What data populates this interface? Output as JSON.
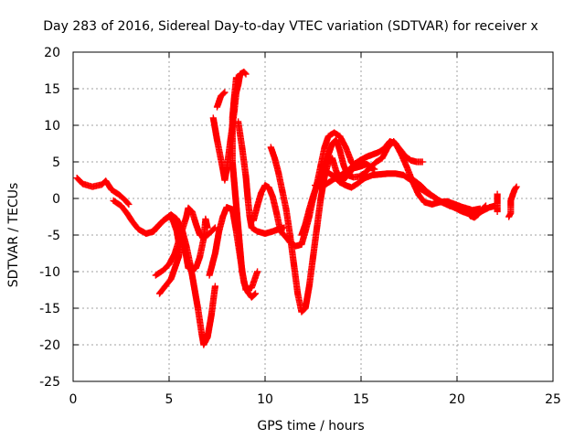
{
  "chart_data": {
    "type": "scatter",
    "title": "Day 283 of 2016, Sidereal Day-to-day VTEC variation (SDTVAR) for receiver x",
    "xlabel": "GPS time / hours",
    "ylabel": "SDTVAR / TECUs",
    "xlim": [
      0,
      25
    ],
    "ylim": [
      -25,
      20
    ],
    "xticks": [
      "0",
      "5",
      "10",
      "15",
      "20",
      "25"
    ],
    "yticks": [
      "-25",
      "-20",
      "-15",
      "-10",
      "-5",
      "0",
      "5",
      "10",
      "15",
      "20"
    ],
    "grid": true,
    "legend": "none",
    "marker": "plus",
    "color": "#ff0000",
    "tracks": [
      [
        [
          0.2,
          2.8
        ],
        [
          0.5,
          2.0
        ],
        [
          1.0,
          1.6
        ],
        [
          1.5,
          1.9
        ],
        [
          1.7,
          2.4
        ],
        [
          2.0,
          1.2
        ],
        [
          2.4,
          0.5
        ],
        [
          2.7,
          -0.2
        ],
        [
          2.9,
          -0.8
        ]
      ],
      [
        [
          2.1,
          -0.3
        ],
        [
          2.5,
          -1.0
        ],
        [
          2.8,
          -2.0
        ],
        [
          3.1,
          -3.2
        ],
        [
          3.4,
          -4.2
        ],
        [
          3.8,
          -4.8
        ],
        [
          4.2,
          -4.5
        ],
        [
          4.5,
          -3.6
        ],
        [
          4.8,
          -2.8
        ],
        [
          5.1,
          -2.2
        ],
        [
          5.4,
          -2.8
        ],
        [
          5.7,
          -4.5
        ],
        [
          5.9,
          -6.5
        ],
        [
          6.1,
          -9.0
        ],
        [
          6.3,
          -12.0
        ],
        [
          6.5,
          -15.0
        ],
        [
          6.7,
          -18.5
        ],
        [
          6.8,
          -20.0
        ],
        [
          7.0,
          -19.0
        ],
        [
          7.2,
          -16.0
        ],
        [
          7.4,
          -12.0
        ]
      ],
      [
        [
          4.3,
          -10.5
        ],
        [
          4.7,
          -9.8
        ],
        [
          5.0,
          -9.0
        ],
        [
          5.3,
          -7.5
        ],
        [
          5.5,
          -5.8
        ],
        [
          5.7,
          -4.2
        ],
        [
          5.9,
          -2.5
        ],
        [
          6.0,
          -1.3
        ],
        [
          6.2,
          -1.8
        ],
        [
          6.4,
          -3.5
        ],
        [
          6.6,
          -5.0
        ],
        [
          6.8,
          -5.2
        ],
        [
          7.0,
          -5.0
        ],
        [
          7.2,
          -4.5
        ],
        [
          7.4,
          -4.0
        ]
      ],
      [
        [
          4.5,
          -13.0
        ],
        [
          4.8,
          -12.0
        ],
        [
          5.1,
          -11.0
        ],
        [
          5.3,
          -9.5
        ],
        [
          5.5,
          -8.0
        ],
        [
          5.6,
          -6.0
        ],
        [
          5.7,
          -5.0
        ],
        [
          5.8,
          -6.5
        ],
        [
          5.9,
          -8.0
        ],
        [
          6.0,
          -9.5
        ],
        [
          6.2,
          -9.8
        ],
        [
          6.4,
          -9.5
        ],
        [
          6.6,
          -8.0
        ],
        [
          6.8,
          -5.5
        ],
        [
          6.9,
          -2.8
        ],
        [
          7.0,
          -4.0
        ]
      ],
      [
        [
          4.1,
          -4.6
        ],
        [
          4.4,
          -3.8
        ],
        [
          4.7,
          -3.0
        ],
        [
          5.0,
          -2.5
        ],
        [
          5.2,
          -3.0
        ],
        [
          5.4,
          -4.5
        ],
        [
          5.5,
          -6.0
        ]
      ],
      [
        [
          7.1,
          -10.5
        ],
        [
          7.4,
          -7.5
        ],
        [
          7.6,
          -4.5
        ],
        [
          7.8,
          -2.5
        ],
        [
          8.0,
          -1.2
        ],
        [
          8.3,
          -1.5
        ],
        [
          8.5,
          -4.5
        ],
        [
          8.7,
          -8.0
        ],
        [
          8.9,
          -11.5
        ],
        [
          9.1,
          -12.8
        ],
        [
          9.3,
          -13.5
        ],
        [
          9.5,
          -13.0
        ]
      ],
      [
        [
          7.5,
          12.5
        ],
        [
          7.7,
          14.0
        ],
        [
          7.9,
          14.5
        ]
      ],
      [
        [
          7.3,
          11.0
        ],
        [
          7.5,
          8.0
        ],
        [
          7.8,
          4.0
        ],
        [
          7.9,
          2.5
        ],
        [
          8.0,
          4.0
        ],
        [
          8.2,
          8.0
        ],
        [
          8.4,
          12.0
        ],
        [
          8.5,
          14.5
        ],
        [
          8.6,
          15.5
        ],
        [
          8.7,
          17.0
        ],
        [
          8.9,
          17.3
        ],
        [
          9.0,
          17.0
        ]
      ],
      [
        [
          8.5,
          16.5
        ],
        [
          8.4,
          14.0
        ],
        [
          8.3,
          11.0
        ],
        [
          8.3,
          8.0
        ],
        [
          8.3,
          5.0
        ],
        [
          8.4,
          2.0
        ],
        [
          8.5,
          -1.0
        ],
        [
          8.6,
          -4.0
        ],
        [
          8.7,
          -7.0
        ],
        [
          8.8,
          -10.0
        ],
        [
          9.0,
          -12.5
        ],
        [
          9.3,
          -12.2
        ],
        [
          9.6,
          -10.0
        ]
      ],
      [
        [
          8.6,
          10.5
        ],
        [
          8.8,
          7.0
        ],
        [
          9.0,
          3.0
        ],
        [
          9.1,
          0.0
        ],
        [
          9.2,
          -2.5
        ],
        [
          9.3,
          -4.0
        ],
        [
          9.6,
          -4.5
        ],
        [
          10.0,
          -4.8
        ],
        [
          10.4,
          -4.5
        ],
        [
          10.7,
          -4.2
        ],
        [
          11.0,
          -4.0
        ]
      ],
      [
        [
          9.4,
          -3.0
        ],
        [
          9.6,
          -1.0
        ],
        [
          9.8,
          0.8
        ],
        [
          10.0,
          1.8
        ],
        [
          10.2,
          1.5
        ],
        [
          10.4,
          0.2
        ],
        [
          10.6,
          -2.0
        ],
        [
          10.8,
          -4.5
        ],
        [
          11.0,
          -5.0
        ]
      ],
      [
        [
          10.3,
          7.0
        ],
        [
          10.5,
          5.5
        ],
        [
          10.7,
          3.5
        ],
        [
          10.9,
          1.0
        ],
        [
          11.1,
          -1.5
        ],
        [
          11.3,
          -5.0
        ],
        [
          11.5,
          -9.0
        ],
        [
          11.7,
          -13.0
        ],
        [
          11.9,
          -15.5
        ],
        [
          12.1,
          -15.0
        ],
        [
          12.3,
          -12.0
        ],
        [
          12.5,
          -8.0
        ],
        [
          12.7,
          -4.0
        ],
        [
          12.9,
          0.0
        ],
        [
          13.1,
          3.0
        ],
        [
          13.3,
          5.0
        ],
        [
          13.5,
          5.5
        ],
        [
          13.7,
          3.8
        ],
        [
          13.9,
          2.5
        ],
        [
          14.2,
          2.8
        ],
        [
          14.5,
          3.8
        ],
        [
          14.8,
          4.8
        ],
        [
          15.1,
          5.0
        ],
        [
          15.4,
          4.3
        ],
        [
          15.7,
          4.0
        ]
      ],
      [
        [
          11.0,
          -5.0
        ],
        [
          11.3,
          -6.0
        ],
        [
          11.6,
          -6.5
        ],
        [
          11.9,
          -6.3
        ],
        [
          12.1,
          -4.5
        ],
        [
          12.3,
          -2.5
        ],
        [
          12.5,
          0.0
        ],
        [
          12.7,
          2.0
        ],
        [
          12.9,
          4.5
        ],
        [
          13.1,
          7.0
        ],
        [
          13.3,
          8.5
        ],
        [
          13.6,
          9.0
        ],
        [
          13.9,
          8.5
        ],
        [
          14.2,
          7.0
        ],
        [
          14.5,
          5.0
        ],
        [
          14.7,
          4.2
        ],
        [
          15.0,
          4.4
        ],
        [
          15.3,
          4.7
        ],
        [
          15.6,
          4.2
        ]
      ],
      [
        [
          11.9,
          -5.0
        ],
        [
          12.1,
          -3.5
        ],
        [
          12.3,
          -1.5
        ],
        [
          12.5,
          0.3
        ],
        [
          12.7,
          1.8
        ],
        [
          12.9,
          3.0
        ],
        [
          13.1,
          4.5
        ],
        [
          13.3,
          6.0
        ],
        [
          13.5,
          7.5
        ],
        [
          13.7,
          8.0
        ],
        [
          13.9,
          6.5
        ],
        [
          14.1,
          4.5
        ],
        [
          14.3,
          3.2
        ],
        [
          14.6,
          2.9
        ],
        [
          14.9,
          3.0
        ],
        [
          15.2,
          3.5
        ],
        [
          15.5,
          4.3
        ],
        [
          15.8,
          5.0
        ],
        [
          16.1,
          5.5
        ],
        [
          16.4,
          7.0
        ],
        [
          16.7,
          7.8
        ],
        [
          17.0,
          6.8
        ],
        [
          17.3,
          5.8
        ],
        [
          17.6,
          5.2
        ],
        [
          17.9,
          5.0
        ],
        [
          18.2,
          5.0
        ]
      ],
      [
        [
          12.6,
          1.8
        ],
        [
          12.9,
          1.6
        ],
        [
          13.2,
          2.0
        ],
        [
          13.5,
          2.5
        ],
        [
          13.8,
          3.0
        ],
        [
          14.1,
          3.4
        ],
        [
          14.4,
          4.0
        ],
        [
          14.7,
          4.8
        ],
        [
          15.0,
          5.3
        ],
        [
          15.3,
          5.7
        ],
        [
          15.6,
          6.0
        ],
        [
          15.9,
          6.3
        ],
        [
          16.2,
          6.8
        ],
        [
          16.5,
          7.8
        ],
        [
          16.8,
          7.5
        ],
        [
          17.1,
          6.0
        ],
        [
          17.4,
          4.2
        ],
        [
          17.7,
          2.2
        ],
        [
          18.0,
          0.5
        ],
        [
          18.3,
          -0.5
        ],
        [
          18.7,
          -0.8
        ],
        [
          19.1,
          -0.5
        ],
        [
          19.5,
          -0.4
        ],
        [
          19.9,
          -0.8
        ],
        [
          20.3,
          -1.2
        ],
        [
          20.7,
          -1.5
        ]
      ],
      [
        [
          13.0,
          4.0
        ],
        [
          13.3,
          3.5
        ],
        [
          13.6,
          3.0
        ],
        [
          13.9,
          2.2
        ],
        [
          14.2,
          1.8
        ],
        [
          14.5,
          1.5
        ],
        [
          14.8,
          2.0
        ],
        [
          15.2,
          2.8
        ],
        [
          15.6,
          3.2
        ],
        [
          16.0,
          3.3
        ],
        [
          16.4,
          3.4
        ],
        [
          16.8,
          3.4
        ],
        [
          17.2,
          3.2
        ],
        [
          17.6,
          2.5
        ],
        [
          18.0,
          1.5
        ],
        [
          18.4,
          0.8
        ],
        [
          18.8,
          0.2
        ],
        [
          19.2,
          -0.5
        ],
        [
          19.6,
          -1.0
        ],
        [
          20.0,
          -1.3
        ],
        [
          20.4,
          -1.5
        ],
        [
          20.8,
          -1.6
        ],
        [
          21.2,
          -1.4
        ]
      ],
      [
        [
          17.5,
          3.0
        ],
        [
          17.8,
          2.4
        ],
        [
          18.1,
          1.8
        ],
        [
          18.4,
          1.0
        ],
        [
          18.7,
          0.4
        ],
        [
          19.0,
          -0.2
        ],
        [
          19.3,
          -0.6
        ],
        [
          19.6,
          -0.9
        ],
        [
          19.9,
          -1.3
        ],
        [
          20.2,
          -1.7
        ],
        [
          20.5,
          -2.0
        ],
        [
          20.8,
          -2.2
        ],
        [
          21.1,
          -2.0
        ],
        [
          21.4,
          -1.6
        ],
        [
          21.7,
          -1.2
        ],
        [
          22.0,
          -1.0
        ]
      ],
      [
        [
          20.5,
          -1.8
        ],
        [
          20.7,
          -2.4
        ],
        [
          20.9,
          -2.6
        ],
        [
          21.1,
          -2.2
        ],
        [
          21.3,
          -1.5
        ],
        [
          21.5,
          -1.0
        ]
      ],
      [
        [
          22.1,
          -0.6
        ],
        [
          22.1,
          0.0
        ],
        [
          22.1,
          0.6
        ],
        [
          22.1,
          -1.3
        ],
        [
          22.1,
          -1.8
        ]
      ],
      [
        [
          22.7,
          -2.5
        ],
        [
          22.8,
          -2.0
        ],
        [
          22.8,
          -1.0
        ],
        [
          22.8,
          -0.3
        ],
        [
          22.9,
          0.5
        ],
        [
          23.0,
          1.2
        ],
        [
          23.1,
          1.6
        ]
      ]
    ]
  }
}
